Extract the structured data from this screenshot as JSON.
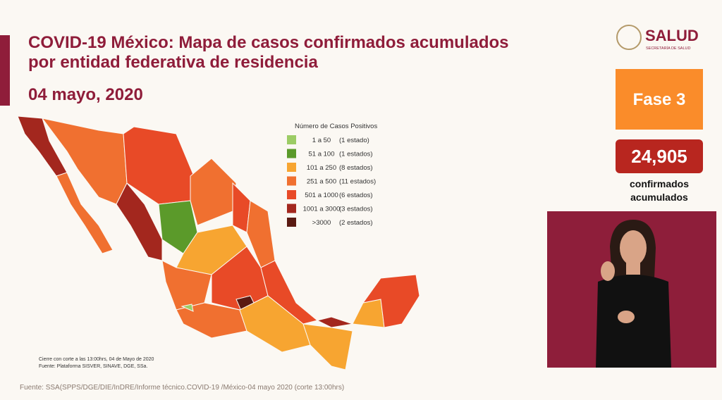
{
  "header": {
    "title_lines": [
      "COVID-19 México: Mapa de casos confirmados acumulados",
      "por entidad federativa de residencia"
    ],
    "date": "04 mayo, 2020"
  },
  "logo": {
    "name": "SALUD",
    "subtitle": "SECRETARÍA DE SALUD"
  },
  "phase": "Fase 3",
  "total": {
    "value": "24,905",
    "caption_lines": [
      "confirmados",
      "acumulados"
    ]
  },
  "legend": {
    "title": "Número de Casos Positivos",
    "items": [
      {
        "range": "1 a 50",
        "count": "(1 estado)",
        "color": "#9ccc65"
      },
      {
        "range": "51 a 100",
        "count": "(1 estados)",
        "color": "#5b9a2a"
      },
      {
        "range": "101 a 250",
        "count": "(8 estados)",
        "color": "#f7a531"
      },
      {
        "range": "251 a 500",
        "count": "(11 estados)",
        "color": "#f07030"
      },
      {
        "range": "501 a 1000",
        "count": "(6 estados)",
        "color": "#e84a27"
      },
      {
        "range": "1001 a 3000",
        "count": "(3 estados)",
        "color": "#a3271e"
      },
      {
        "range": ">3000",
        "count": "(2 estados)",
        "color": "#5a1a12"
      }
    ]
  },
  "notes": [
    "Cierre con corte a las 13:00hrs, 04 de Mayo de 2020",
    "Fuente: Plataforma SISVER, SINAVE, DGE, SSa."
  ],
  "source": "Fuente: SSA(SPPS/DGE/DIE/InDRE/Informe técnico.COVID-19 /México-04 mayo 2020 (corte 13:00hrs)"
}
